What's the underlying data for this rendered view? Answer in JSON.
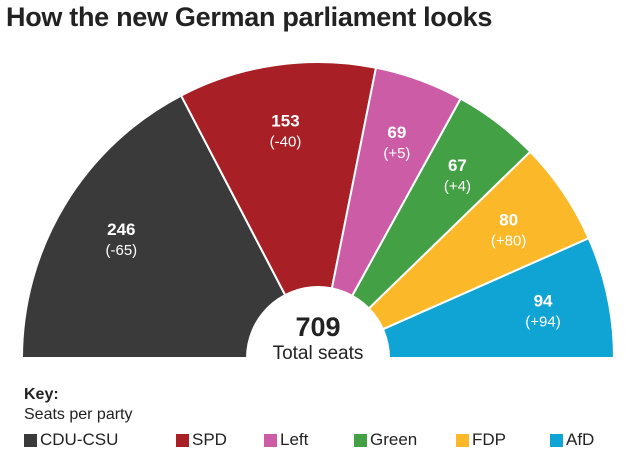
{
  "chart_data": {
    "type": "pie",
    "variant": "semicircle",
    "title": "How the new German parliament looks",
    "center_value": "709",
    "center_label": "Total seats",
    "key_title": "Key:",
    "key_subtitle": "Seats per party",
    "legend_placement": "bottom",
    "series": [
      {
        "name": "CDU-CSU",
        "value": 246,
        "change": "(-65)",
        "color": "#3a3a3a"
      },
      {
        "name": "SPD",
        "value": 153,
        "change": "(-40)",
        "color": "#a82025"
      },
      {
        "name": "Left",
        "value": 69,
        "change": "(+5)",
        "color": "#cc5ca5"
      },
      {
        "name": "Green",
        "value": 67,
        "change": "(+4)",
        "color": "#44a044"
      },
      {
        "name": "FDP",
        "value": 80,
        "change": "(+80)",
        "color": "#fbb829"
      },
      {
        "name": "AfD",
        "value": 94,
        "change": "(+94)",
        "color": "#10a4d4"
      }
    ]
  }
}
